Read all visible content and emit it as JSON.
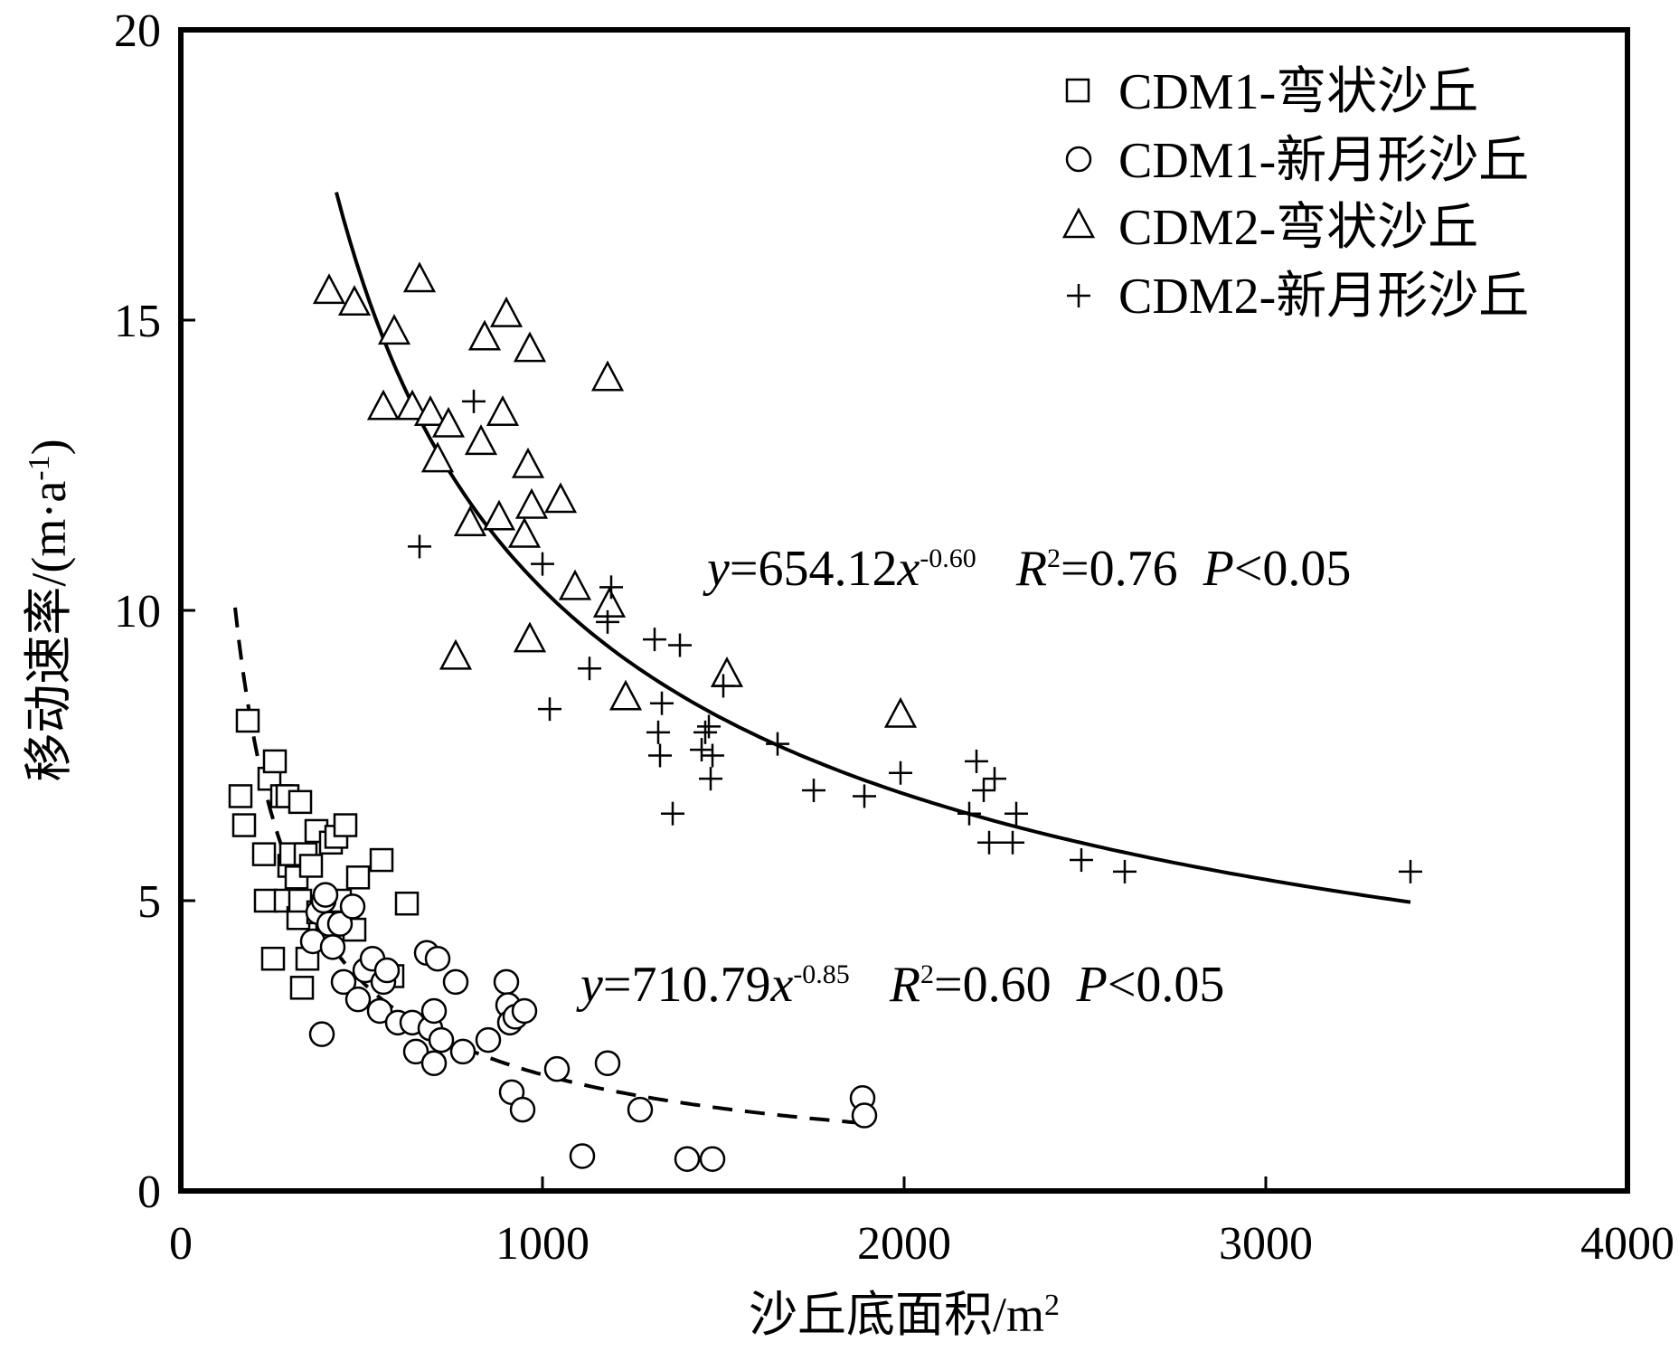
{
  "chart_data": {
    "type": "scatter",
    "xlabel": "沙丘底面积/m",
    "xlabel_sup": "2",
    "ylabel": "移动速率/(m·a",
    "ylabel_sup": "-1",
    "ylabel_tail": ")",
    "xlim": [
      0,
      4000
    ],
    "ylim": [
      0,
      20
    ],
    "xticks": [
      "0",
      "1000",
      "2000",
      "3000",
      "4000"
    ],
    "yticks": [
      "0",
      "5",
      "10",
      "15",
      "20"
    ],
    "legend_position": "top-right",
    "series": [
      {
        "name": "CDM1-弯状沙丘",
        "marker": "square",
        "points": [
          [
            165,
            6.8
          ],
          [
            175,
            6.3
          ],
          [
            185,
            8.1
          ],
          [
            230,
            5.8
          ],
          [
            235,
            5.0
          ],
          [
            245,
            7.1
          ],
          [
            255,
            4.0
          ],
          [
            260,
            7.4
          ],
          [
            280,
            6.8
          ],
          [
            290,
            5.0
          ],
          [
            295,
            6.8
          ],
          [
            300,
            5.6
          ],
          [
            305,
            5.8
          ],
          [
            320,
            5.4
          ],
          [
            325,
            4.7
          ],
          [
            330,
            5.0
          ],
          [
            330,
            6.7
          ],
          [
            335,
            3.5
          ],
          [
            345,
            5.8
          ],
          [
            350,
            4.0
          ],
          [
            360,
            5.6
          ],
          [
            375,
            6.2
          ],
          [
            380,
            4.8
          ],
          [
            400,
            5.0
          ],
          [
            405,
            4.5
          ],
          [
            415,
            6.0
          ],
          [
            420,
            4.6
          ],
          [
            430,
            6.1
          ],
          [
            440,
            5.0
          ],
          [
            455,
            6.3
          ],
          [
            480,
            4.5
          ],
          [
            490,
            5.4
          ],
          [
            555,
            5.7
          ],
          [
            585,
            3.7
          ],
          [
            625,
            4.95
          ]
        ]
      },
      {
        "name": "CDM1-新月形沙丘",
        "marker": "circle",
        "points": [
          [
            365,
            4.3
          ],
          [
            380,
            4.8
          ],
          [
            390,
            2.7
          ],
          [
            395,
            5.0
          ],
          [
            400,
            5.1
          ],
          [
            410,
            4.6
          ],
          [
            420,
            4.2
          ],
          [
            440,
            4.6
          ],
          [
            450,
            3.6
          ],
          [
            475,
            4.9
          ],
          [
            490,
            3.3
          ],
          [
            510,
            3.8
          ],
          [
            530,
            4.0
          ],
          [
            550,
            3.1
          ],
          [
            560,
            3.6
          ],
          [
            570,
            3.8
          ],
          [
            600,
            2.9
          ],
          [
            640,
            2.9
          ],
          [
            650,
            2.4
          ],
          [
            680,
            4.1
          ],
          [
            690,
            2.8
          ],
          [
            700,
            3.1
          ],
          [
            700,
            2.2
          ],
          [
            710,
            4.0
          ],
          [
            720,
            2.6
          ],
          [
            760,
            3.6
          ],
          [
            780,
            2.4
          ],
          [
            850,
            2.6
          ],
          [
            900,
            3.6
          ],
          [
            905,
            3.2
          ],
          [
            910,
            2.9
          ],
          [
            915,
            1.7
          ],
          [
            925,
            3.0
          ],
          [
            945,
            1.4
          ],
          [
            950,
            3.1
          ],
          [
            1040,
            2.1
          ],
          [
            1110,
            0.6
          ],
          [
            1180,
            2.2
          ],
          [
            1270,
            1.4
          ],
          [
            1400,
            0.55
          ],
          [
            1470,
            0.55
          ],
          [
            1885,
            1.6
          ],
          [
            1890,
            1.3
          ]
        ]
      },
      {
        "name": "CDM2-弯状沙丘",
        "marker": "triangle",
        "points": [
          [
            410,
            15.5
          ],
          [
            480,
            15.3
          ],
          [
            560,
            13.5
          ],
          [
            590,
            14.8
          ],
          [
            640,
            13.5
          ],
          [
            660,
            15.7
          ],
          [
            690,
            13.4
          ],
          [
            710,
            12.6
          ],
          [
            740,
            13.2
          ],
          [
            760,
            9.2
          ],
          [
            800,
            11.5
          ],
          [
            830,
            12.9
          ],
          [
            840,
            14.7
          ],
          [
            880,
            11.6
          ],
          [
            890,
            13.4
          ],
          [
            900,
            15.1
          ],
          [
            950,
            11.3
          ],
          [
            960,
            12.5
          ],
          [
            965,
            14.5
          ],
          [
            965,
            9.5
          ],
          [
            970,
            11.8
          ],
          [
            1050,
            11.9
          ],
          [
            1090,
            10.4
          ],
          [
            1180,
            14.0
          ],
          [
            1185,
            10.1
          ],
          [
            1230,
            8.5
          ],
          [
            1510,
            8.9
          ],
          [
            1990,
            8.2
          ]
        ]
      },
      {
        "name": "CDM2-新月形沙丘",
        "marker": "plus",
        "points": [
          [
            660,
            11.1
          ],
          [
            810,
            13.6
          ],
          [
            1000,
            10.8
          ],
          [
            1020,
            8.3
          ],
          [
            1130,
            9.0
          ],
          [
            1180,
            9.8
          ],
          [
            1190,
            10.4
          ],
          [
            1310,
            9.5
          ],
          [
            1320,
            7.9
          ],
          [
            1325,
            7.5
          ],
          [
            1330,
            8.4
          ],
          [
            1360,
            6.5
          ],
          [
            1380,
            9.4
          ],
          [
            1440,
            7.6
          ],
          [
            1450,
            7.9
          ],
          [
            1460,
            8.0
          ],
          [
            1465,
            7.1
          ],
          [
            1470,
            7.5
          ],
          [
            1500,
            8.7
          ],
          [
            1650,
            7.7
          ],
          [
            1750,
            6.9
          ],
          [
            1890,
            6.8
          ],
          [
            1990,
            7.2
          ],
          [
            2180,
            6.5
          ],
          [
            2200,
            7.4
          ],
          [
            2220,
            6.9
          ],
          [
            2235,
            6.0
          ],
          [
            2250,
            7.1
          ],
          [
            2300,
            6.0
          ],
          [
            2310,
            6.5
          ],
          [
            2490,
            5.7
          ],
          [
            2610,
            5.5
          ],
          [
            3400,
            5.5
          ]
        ]
      }
    ],
    "fits": [
      {
        "coef": 654.12,
        "exp": -0.6,
        "x_range": [
          430,
          3400
        ],
        "style": "solid",
        "label": {
          "y": "y",
          "eq": "=654.12",
          "x": "x",
          "sup": "-0.60",
          "r": "R",
          "r2sup": "2",
          "rval": "=0.76",
          "p": "P",
          "pval": "<0.05"
        }
      },
      {
        "coef": 710.79,
        "exp": -0.85,
        "x_range": [
          150,
          1880
        ],
        "style": "dashed",
        "label": {
          "y": "y",
          "eq": "=710.79",
          "x": "x",
          "sup": "-0.85",
          "r": "R",
          "r2sup": "2",
          "rval": "=0.60",
          "p": "P",
          "pval": "<0.05"
        }
      }
    ]
  }
}
